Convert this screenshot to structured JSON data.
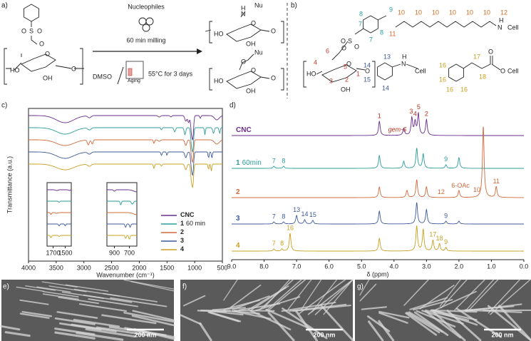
{
  "panel_labels": [
    "a)",
    "b)",
    "c)",
    "d)",
    "e)",
    "f)",
    "g)"
  ],
  "a": {
    "reagent": "Nucleophiles",
    "condition1": "60 min milling",
    "solvent": "DMSO",
    "aging": "Aging",
    "condition2": "55°C for 3 days",
    "start_atoms": [
      "O",
      "S",
      "O",
      "O",
      "O",
      "HO",
      "OH",
      "O"
    ],
    "product1_atoms": [
      "H",
      "N",
      "Nu",
      "HO",
      "O",
      "OH",
      "O"
    ],
    "product2_atoms": [
      "O",
      "Nu",
      "HO",
      "O",
      "OH",
      "O"
    ]
  },
  "b": {
    "tosyl_numbers": [
      "8",
      "9",
      "7",
      "8",
      "7"
    ],
    "glucose_numbers": [
      "6",
      "4",
      "5",
      "3",
      "2",
      "1"
    ],
    "tosyl_atoms": [
      "O",
      "S",
      "O",
      "O",
      "O",
      "HO",
      "OH",
      "O"
    ],
    "chain_numbers": [
      "10",
      "10",
      "10",
      "10",
      "10",
      "10",
      "12",
      "11"
    ],
    "chain_atoms": [
      "H",
      "N",
      "Cell"
    ],
    "aniline_numbers": [
      "13",
      "14",
      "15",
      "14"
    ],
    "aniline_atoms": [
      "H",
      "N",
      "Cell"
    ],
    "ester_numbers": [
      "16",
      "16",
      "16",
      "16",
      "17",
      "18"
    ],
    "ester_atoms": [
      "O",
      "O",
      "Cell"
    ],
    "colors": {
      "tosyl": "#2a9d9a",
      "glucose": "#c0392b",
      "chain": "#d2691e",
      "aniline": "#3c5a9a",
      "ester": "#c8a020"
    }
  },
  "chart_data": [
    {
      "type": "line",
      "xlabel": "Wavenumber (cm⁻¹)",
      "ylabel": "Transmittance (a.u.)",
      "xlim": [
        4000,
        500
      ],
      "xticks": [
        4000,
        3500,
        3000,
        2500,
        2000,
        1500,
        1000,
        500
      ],
      "legend": "lower right",
      "series": [
        {
          "name": "CNC",
          "color": "#6a2c8e",
          "peaks": [
            [
              3340,
              10,
              220
            ],
            [
              2900,
              3,
              40
            ],
            [
              1640,
              2,
              30
            ],
            [
              1430,
              2,
              20
            ],
            [
              1160,
              8,
              25
            ],
            [
              1110,
              10,
              20
            ],
            [
              1055,
              26,
              22
            ],
            [
              1030,
              24,
              18
            ],
            [
              900,
              4,
              15
            ],
            [
              600,
              6,
              60
            ]
          ]
        },
        {
          "name": "1",
          "suffix": "60 min",
          "color": "#2a9d9a",
          "peaks": [
            [
              3340,
              9,
              220
            ],
            [
              2900,
              3,
              40
            ],
            [
              1600,
              3,
              15
            ],
            [
              1360,
              6,
              20
            ],
            [
              1175,
              10,
              20
            ],
            [
              1055,
              26,
              22
            ],
            [
              1030,
              24,
              18
            ],
            [
              815,
              10,
              12
            ],
            [
              660,
              8,
              20
            ],
            [
              550,
              8,
              15
            ]
          ]
        },
        {
          "name": "2",
          "color": "#d2693a",
          "peaks": [
            [
              3340,
              8,
              220
            ],
            [
              2920,
              7,
              25
            ],
            [
              2850,
              6,
              20
            ],
            [
              1735,
              5,
              15
            ],
            [
              1640,
              2,
              30
            ],
            [
              1160,
              8,
              25
            ],
            [
              1055,
              24,
              22
            ],
            [
              1030,
              22,
              18
            ],
            [
              600,
              6,
              60
            ]
          ]
        },
        {
          "name": "3",
          "color": "#3c5a9a",
          "peaks": [
            [
              3340,
              9,
              220
            ],
            [
              2900,
              3,
              40
            ],
            [
              1600,
              5,
              15
            ],
            [
              1500,
              5,
              12
            ],
            [
              1160,
              8,
              25
            ],
            [
              1055,
              25,
              22
            ],
            [
              1030,
              23,
              18
            ],
            [
              750,
              9,
              12
            ],
            [
              690,
              9,
              12
            ]
          ]
        },
        {
          "name": "4",
          "color": "#c8a020",
          "peaks": [
            [
              3340,
              8,
              220
            ],
            [
              2900,
              3,
              40
            ],
            [
              1735,
              6,
              15
            ],
            [
              1600,
              3,
              15
            ],
            [
              1160,
              8,
              25
            ],
            [
              1055,
              25,
              22
            ],
            [
              1030,
              23,
              18
            ],
            [
              750,
              8,
              12
            ],
            [
              700,
              10,
              12
            ]
          ]
        }
      ],
      "insets": [
        {
          "xlim": [
            1800,
            1400
          ],
          "xticks": [
            1700,
            1500
          ]
        },
        {
          "xlim": [
            1000,
            600
          ],
          "xticks": [
            900,
            700
          ]
        }
      ]
    },
    {
      "type": "line",
      "xlabel": "δ (ppm)",
      "xlim": [
        9,
        0
      ],
      "xticks": [
        {
          "value": 9,
          "label": "9.0"
        },
        {
          "value": 8,
          "label": "8.0"
        },
        {
          "value": 7,
          "label": "7.0"
        },
        {
          "value": 6,
          "label": "6.0"
        },
        {
          "value": 5,
          "label": "5.0"
        },
        {
          "value": 4,
          "label": "4.0"
        },
        {
          "value": 3,
          "label": "3.0"
        },
        {
          "value": 2,
          "label": "2.0"
        },
        {
          "value": 1,
          "label": "1.0"
        },
        {
          "value": 0,
          "label": "0.0"
        }
      ],
      "series": [
        {
          "name": "CNC",
          "color": "#6a2c8e",
          "label_color": "#b5321e",
          "peaks": [
            [
              4.45,
              20
            ],
            [
              3.7,
              10
            ],
            [
              3.45,
              24
            ],
            [
              3.35,
              18
            ],
            [
              3.25,
              30
            ],
            [
              3.0,
              22
            ]
          ],
          "annotations": [
            {
              "text": "1",
              "x": 4.45
            },
            {
              "text": "gem-6",
              "x": 3.9
            },
            {
              "text": "3",
              "x": 3.47
            },
            {
              "text": "4",
              "x": 3.35
            },
            {
              "text": "5",
              "x": 3.24
            },
            {
              "text": "2",
              "x": 3.0
            }
          ]
        },
        {
          "name": "1",
          "suffix": "60min",
          "color": "#2a9d9a",
          "label_color": "#2a9d9a",
          "peaks": [
            [
              7.7,
              3
            ],
            [
              7.4,
              3
            ],
            [
              4.45,
              18
            ],
            [
              3.7,
              10
            ],
            [
              3.3,
              28
            ],
            [
              3.1,
              20
            ],
            [
              2.4,
              5
            ],
            [
              2.0,
              15
            ]
          ],
          "annotations": [
            {
              "text": "7",
              "x": 7.7
            },
            {
              "text": "8",
              "x": 7.4
            },
            {
              "text": "9",
              "x": 2.4
            }
          ]
        },
        {
          "name": "2",
          "color": "#d2693a",
          "label_color": "#d2693a",
          "peaks": [
            [
              4.45,
              15
            ],
            [
              3.6,
              10
            ],
            [
              3.3,
              25
            ],
            [
              3.0,
              15
            ],
            [
              2.0,
              10
            ],
            [
              1.25,
              100
            ],
            [
              0.85,
              15
            ]
          ],
          "annotations": [
            {
              "text": "12",
              "x": 2.55
            },
            {
              "text": "6-OAc",
              "x": 1.95
            },
            {
              "text": "10",
              "x": 1.45
            },
            {
              "text": "11",
              "x": 0.85
            }
          ]
        },
        {
          "name": "3",
          "color": "#3c5a9a",
          "label_color": "#3c5a9a",
          "peaks": [
            [
              7.7,
              3
            ],
            [
              7.4,
              3
            ],
            [
              7.0,
              12
            ],
            [
              6.75,
              6
            ],
            [
              6.5,
              5
            ],
            [
              4.45,
              18
            ],
            [
              3.3,
              30
            ],
            [
              3.0,
              20
            ],
            [
              2.4,
              4
            ],
            [
              2.0,
              4
            ]
          ],
          "annotations": [
            {
              "text": "7",
              "x": 7.7
            },
            {
              "text": "8",
              "x": 7.4
            },
            {
              "text": "13",
              "x": 7.0
            },
            {
              "text": "14",
              "x": 6.75
            },
            {
              "text": "15",
              "x": 6.5
            },
            {
              "text": "9",
              "x": 2.4
            }
          ]
        },
        {
          "name": "4",
          "color": "#c8a020",
          "label_color": "#c8a020",
          "peaks": [
            [
              7.7,
              3
            ],
            [
              7.45,
              3
            ],
            [
              7.2,
              25
            ],
            [
              4.45,
              18
            ],
            [
              3.3,
              35
            ],
            [
              3.1,
              30
            ],
            [
              2.8,
              15
            ],
            [
              2.6,
              10
            ],
            [
              2.4,
              5
            ]
          ],
          "annotations": [
            {
              "text": "7",
              "x": 7.7
            },
            {
              "text": "8",
              "x": 7.45
            },
            {
              "text": "16",
              "x": 7.2
            },
            {
              "text": "17",
              "x": 2.8
            },
            {
              "text": "18",
              "x": 2.6
            },
            {
              "text": "9",
              "x": 2.4
            }
          ]
        }
      ]
    }
  ],
  "tem": {
    "scale_bars": [
      "200 nm",
      "200 nm",
      "200 nm"
    ]
  }
}
